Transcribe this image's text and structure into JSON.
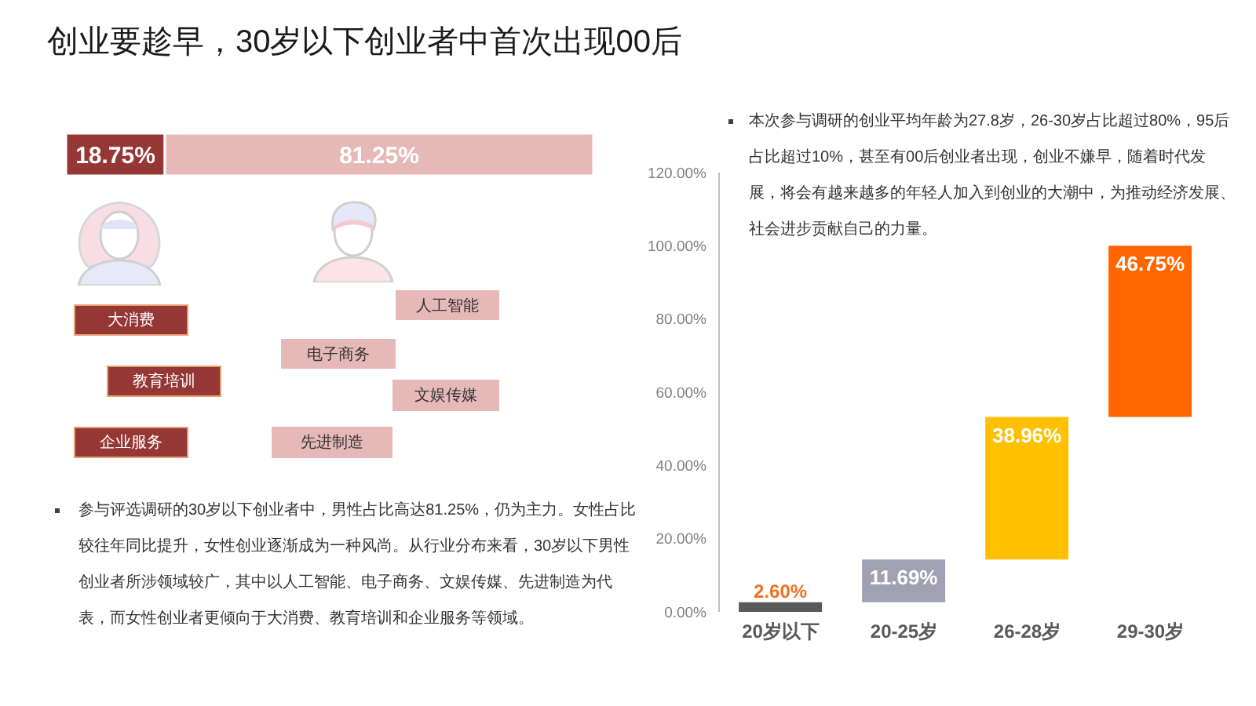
{
  "chart_data": [
    {
      "type": "bar",
      "title": "创业要趁早，30岁以下创业者中首次出现00后",
      "orientation": "horizontal",
      "stacked": true,
      "categories": [
        null
      ],
      "series": [
        {
          "color": "#953735",
          "values": [
            18.75
          ],
          "value_labels": [
            "18.75%"
          ]
        },
        {
          "color": "#e6b9b8",
          "values": [
            81.25
          ],
          "value_labels": [
            "81.25%"
          ]
        }
      ],
      "tick_labels": false,
      "annotations": [
        "大消费",
        "教育培训",
        "企业服务",
        "人工智能",
        "电子商务",
        "文娱传媒",
        "先进制造",
        "参与评选调研的30岁以下创业者中，男性占比高达81.25%，仍为主力。女性占比较往年同比提升，女性创业逐渐成为一种风尚。从行业分布来看，30岁以下男性创业者所涉领域较广，其中以人工智能、电子商务、文娱传媒、先进制造为代表，而女性创业者更倾向于大消费、教育培训和企业服务等领域。"
      ]
    },
    {
      "type": "bar",
      "categories": [
        "20岁以下",
        "20-25岁",
        "26-28岁",
        "29-30岁"
      ],
      "values": [
        2.6,
        11.69,
        38.96,
        46.75
      ],
      "base": [
        0,
        2.6,
        14.29,
        53.25
      ],
      "colors": [
        "#595959",
        "#a1a1b3",
        "#ffc000",
        "#ff6600"
      ],
      "value_labels": [
        "2.60%",
        "11.69%",
        "38.96%",
        "46.75%"
      ],
      "ylim": [
        0,
        120
      ],
      "yticks": [
        {
          "value": 0,
          "label": "0.00%"
        },
        {
          "value": 20,
          "label": "20.00%"
        },
        {
          "value": 40,
          "label": "40.00%"
        },
        {
          "value": 60,
          "label": "60.00%"
        },
        {
          "value": 80,
          "label": "80.00%"
        },
        {
          "value": 100,
          "label": "100.00%"
        },
        {
          "value": 120,
          "label": "120.00%"
        }
      ],
      "annotations": [
        "本次参与调研的创业平均年龄为27.8岁，26-30岁占比超过80%，95后占比超过10%，甚至有00后创业者出现，创业不嫌早，随着时代发展，将会有越来越多的年轻人加入到创业的大潮中，为推动经济发展、社会进步贡献自己的力量。"
      ]
    }
  ]
}
